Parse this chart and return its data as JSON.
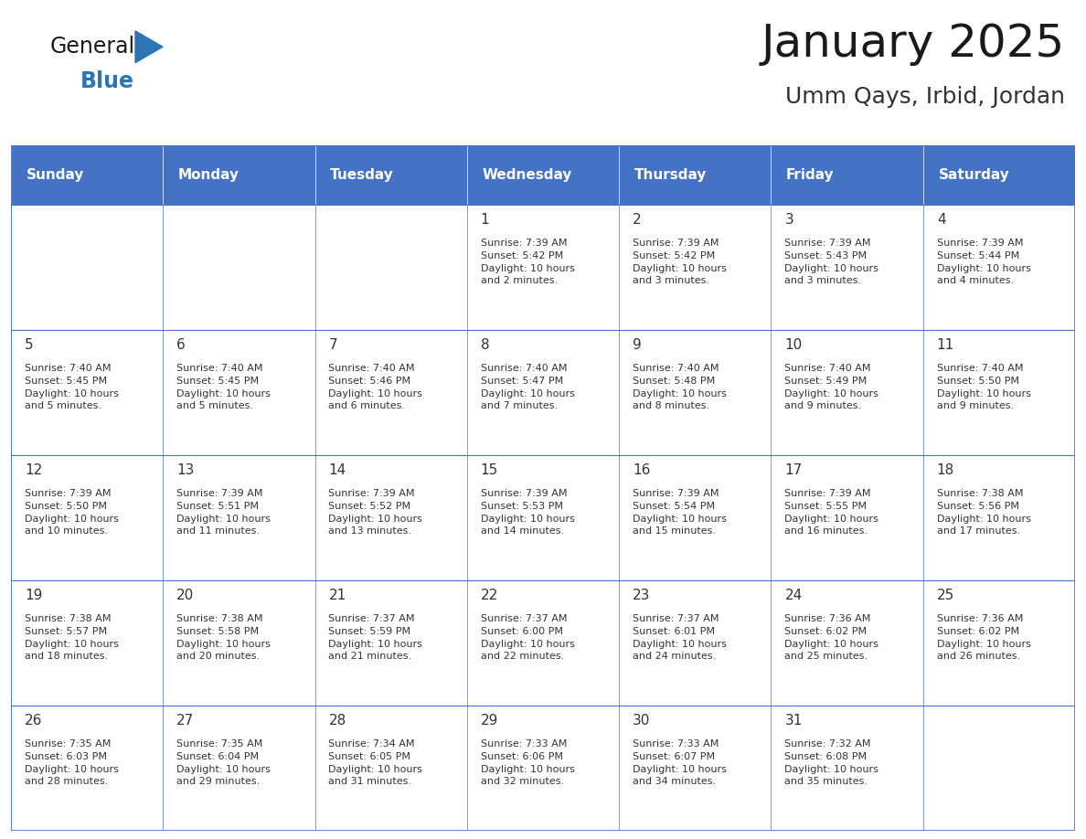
{
  "title": "January 2025",
  "subtitle": "Umm Qays, Irbid, Jordan",
  "header_bg": "#4472C4",
  "header_text_color": "#FFFFFF",
  "day_names": [
    "Sunday",
    "Monday",
    "Tuesday",
    "Wednesday",
    "Thursday",
    "Friday",
    "Saturday"
  ],
  "title_color": "#1a1a1a",
  "subtitle_color": "#333333",
  "text_color": "#333333",
  "line_color": "#4472C4",
  "general_color": "#1a1a1a",
  "blue_color": "#2e75b6",
  "logo_general_fontsize": 17,
  "logo_blue_fontsize": 17,
  "title_fontsize": 36,
  "subtitle_fontsize": 18,
  "header_fontsize": 11,
  "day_num_fontsize": 11,
  "info_fontsize": 8,
  "calendar": [
    [
      {
        "day": "",
        "info": ""
      },
      {
        "day": "",
        "info": ""
      },
      {
        "day": "",
        "info": ""
      },
      {
        "day": "1",
        "info": "Sunrise: 7:39 AM\nSunset: 5:42 PM\nDaylight: 10 hours\nand 2 minutes."
      },
      {
        "day": "2",
        "info": "Sunrise: 7:39 AM\nSunset: 5:42 PM\nDaylight: 10 hours\nand 3 minutes."
      },
      {
        "day": "3",
        "info": "Sunrise: 7:39 AM\nSunset: 5:43 PM\nDaylight: 10 hours\nand 3 minutes."
      },
      {
        "day": "4",
        "info": "Sunrise: 7:39 AM\nSunset: 5:44 PM\nDaylight: 10 hours\nand 4 minutes."
      }
    ],
    [
      {
        "day": "5",
        "info": "Sunrise: 7:40 AM\nSunset: 5:45 PM\nDaylight: 10 hours\nand 5 minutes."
      },
      {
        "day": "6",
        "info": "Sunrise: 7:40 AM\nSunset: 5:45 PM\nDaylight: 10 hours\nand 5 minutes."
      },
      {
        "day": "7",
        "info": "Sunrise: 7:40 AM\nSunset: 5:46 PM\nDaylight: 10 hours\nand 6 minutes."
      },
      {
        "day": "8",
        "info": "Sunrise: 7:40 AM\nSunset: 5:47 PM\nDaylight: 10 hours\nand 7 minutes."
      },
      {
        "day": "9",
        "info": "Sunrise: 7:40 AM\nSunset: 5:48 PM\nDaylight: 10 hours\nand 8 minutes."
      },
      {
        "day": "10",
        "info": "Sunrise: 7:40 AM\nSunset: 5:49 PM\nDaylight: 10 hours\nand 9 minutes."
      },
      {
        "day": "11",
        "info": "Sunrise: 7:40 AM\nSunset: 5:50 PM\nDaylight: 10 hours\nand 9 minutes."
      }
    ],
    [
      {
        "day": "12",
        "info": "Sunrise: 7:39 AM\nSunset: 5:50 PM\nDaylight: 10 hours\nand 10 minutes."
      },
      {
        "day": "13",
        "info": "Sunrise: 7:39 AM\nSunset: 5:51 PM\nDaylight: 10 hours\nand 11 minutes."
      },
      {
        "day": "14",
        "info": "Sunrise: 7:39 AM\nSunset: 5:52 PM\nDaylight: 10 hours\nand 13 minutes."
      },
      {
        "day": "15",
        "info": "Sunrise: 7:39 AM\nSunset: 5:53 PM\nDaylight: 10 hours\nand 14 minutes."
      },
      {
        "day": "16",
        "info": "Sunrise: 7:39 AM\nSunset: 5:54 PM\nDaylight: 10 hours\nand 15 minutes."
      },
      {
        "day": "17",
        "info": "Sunrise: 7:39 AM\nSunset: 5:55 PM\nDaylight: 10 hours\nand 16 minutes."
      },
      {
        "day": "18",
        "info": "Sunrise: 7:38 AM\nSunset: 5:56 PM\nDaylight: 10 hours\nand 17 minutes."
      }
    ],
    [
      {
        "day": "19",
        "info": "Sunrise: 7:38 AM\nSunset: 5:57 PM\nDaylight: 10 hours\nand 18 minutes."
      },
      {
        "day": "20",
        "info": "Sunrise: 7:38 AM\nSunset: 5:58 PM\nDaylight: 10 hours\nand 20 minutes."
      },
      {
        "day": "21",
        "info": "Sunrise: 7:37 AM\nSunset: 5:59 PM\nDaylight: 10 hours\nand 21 minutes."
      },
      {
        "day": "22",
        "info": "Sunrise: 7:37 AM\nSunset: 6:00 PM\nDaylight: 10 hours\nand 22 minutes."
      },
      {
        "day": "23",
        "info": "Sunrise: 7:37 AM\nSunset: 6:01 PM\nDaylight: 10 hours\nand 24 minutes."
      },
      {
        "day": "24",
        "info": "Sunrise: 7:36 AM\nSunset: 6:02 PM\nDaylight: 10 hours\nand 25 minutes."
      },
      {
        "day": "25",
        "info": "Sunrise: 7:36 AM\nSunset: 6:02 PM\nDaylight: 10 hours\nand 26 minutes."
      }
    ],
    [
      {
        "day": "26",
        "info": "Sunrise: 7:35 AM\nSunset: 6:03 PM\nDaylight: 10 hours\nand 28 minutes."
      },
      {
        "day": "27",
        "info": "Sunrise: 7:35 AM\nSunset: 6:04 PM\nDaylight: 10 hours\nand 29 minutes."
      },
      {
        "day": "28",
        "info": "Sunrise: 7:34 AM\nSunset: 6:05 PM\nDaylight: 10 hours\nand 31 minutes."
      },
      {
        "day": "29",
        "info": "Sunrise: 7:33 AM\nSunset: 6:06 PM\nDaylight: 10 hours\nand 32 minutes."
      },
      {
        "day": "30",
        "info": "Sunrise: 7:33 AM\nSunset: 6:07 PM\nDaylight: 10 hours\nand 34 minutes."
      },
      {
        "day": "31",
        "info": "Sunrise: 7:32 AM\nSunset: 6:08 PM\nDaylight: 10 hours\nand 35 minutes."
      },
      {
        "day": "",
        "info": ""
      }
    ]
  ]
}
